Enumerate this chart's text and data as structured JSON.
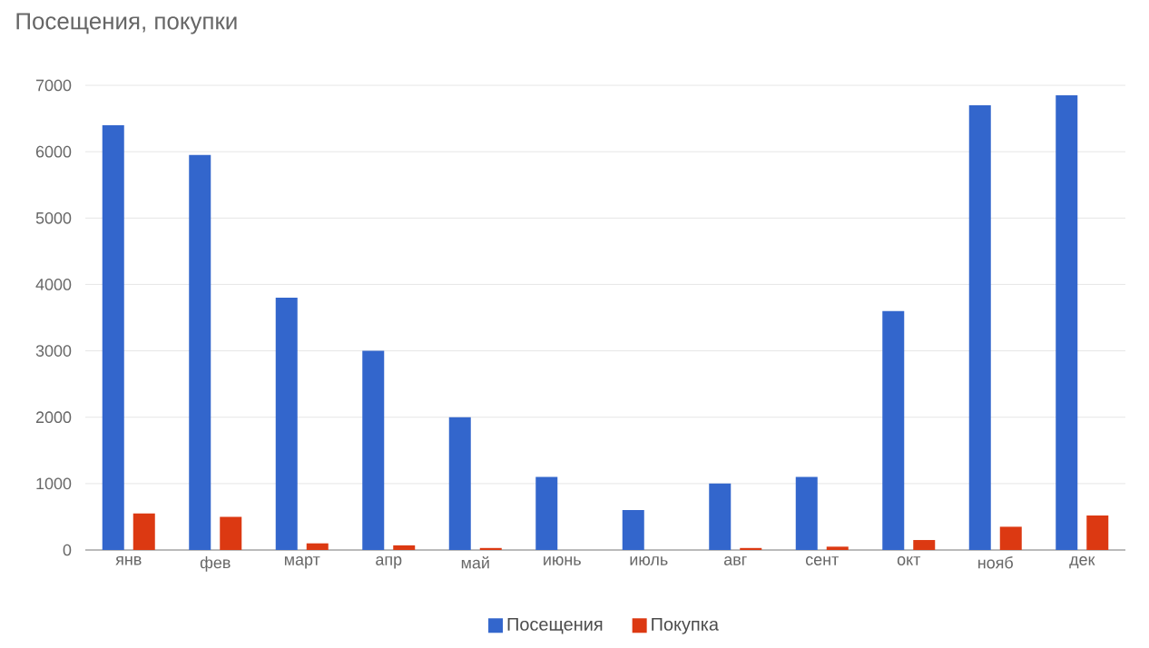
{
  "chart_data": {
    "type": "bar",
    "title": "Посещения, покупки",
    "categories": [
      "янв",
      "фев",
      "март",
      "апр",
      "май",
      "июнь",
      "июль",
      "авг",
      "сент",
      "окт",
      "нояб",
      "дек"
    ],
    "series": [
      {
        "name": "Посещения",
        "color": "#3366cc",
        "values": [
          6400,
          5950,
          3800,
          3000,
          2000,
          1100,
          600,
          1000,
          1100,
          3600,
          6700,
          6850
        ]
      },
      {
        "name": "Покупка",
        "color": "#dc3912",
        "values": [
          550,
          500,
          100,
          70,
          30,
          0,
          0,
          30,
          50,
          150,
          350,
          520
        ]
      }
    ],
    "ylim": [
      0,
      7000
    ],
    "yticks": [
      0,
      1000,
      2000,
      3000,
      4000,
      5000,
      6000,
      7000
    ],
    "grid": "y",
    "legend": "bottom"
  }
}
